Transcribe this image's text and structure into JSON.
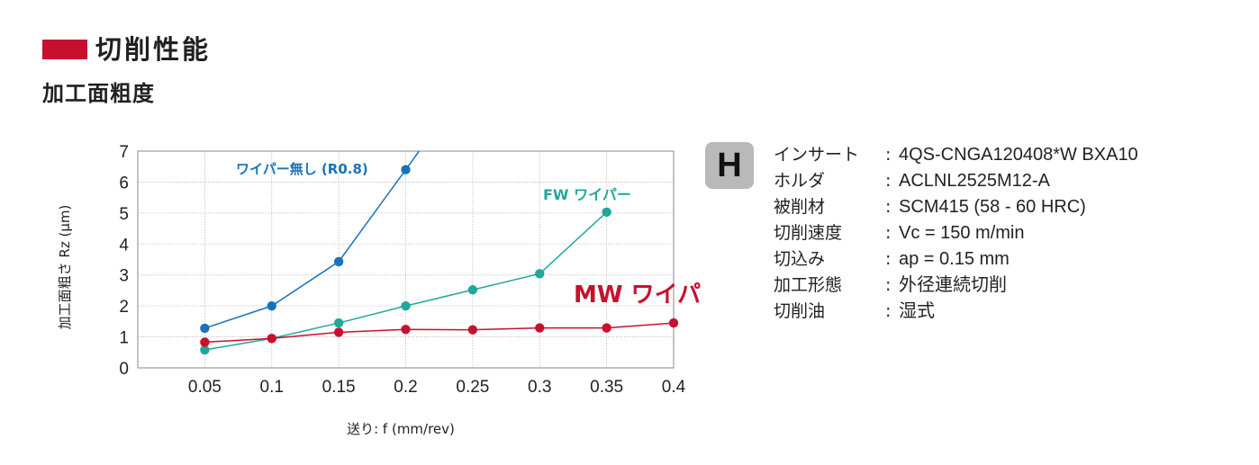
{
  "header": {
    "title": "切削性能",
    "subtitle": "加工面粗度",
    "accent_color": "#c8102e"
  },
  "chart_data": {
    "type": "line",
    "title": "",
    "xlabel": "送り: f (mm/rev)",
    "ylabel": "加工面粗さ Rz (μm)",
    "x_ticks": [
      "0.05",
      "0.1",
      "0.15",
      "0.2",
      "0.25",
      "0.3",
      "0.35",
      "0.4"
    ],
    "y_ticks": [
      "0",
      "1",
      "2",
      "3",
      "4",
      "5",
      "6",
      "7"
    ],
    "xlim": [
      0,
      0.4
    ],
    "ylim": [
      0,
      7
    ],
    "grid": true,
    "series": [
      {
        "name": "ワイパー無し (R0.8)",
        "color": "#1a73b8",
        "x": [
          0.05,
          0.1,
          0.15,
          0.2
        ],
        "y": [
          1.28,
          2.0,
          3.43,
          6.4
        ],
        "extends_to": {
          "x": 0.21,
          "y": 7.0
        }
      },
      {
        "name": "FW ワイパー",
        "color": "#1fa89a",
        "x": [
          0.05,
          0.1,
          0.15,
          0.2,
          0.25,
          0.3,
          0.35
        ],
        "y": [
          0.58,
          0.95,
          1.45,
          2.0,
          2.52,
          3.04,
          5.03
        ]
      },
      {
        "name": "MW ワイパー",
        "color": "#c8102e",
        "x": [
          0.05,
          0.1,
          0.15,
          0.2,
          0.25,
          0.3,
          0.35,
          0.4
        ],
        "y": [
          0.83,
          0.95,
          1.15,
          1.24,
          1.23,
          1.29,
          1.29,
          1.45
        ]
      }
    ]
  },
  "spec": {
    "badge": "H",
    "rows": [
      {
        "label": "インサート",
        "value": "4QS-CNGA120408*W BXA10"
      },
      {
        "label": "ホルダ",
        "value": "ACLNL2525M12-A"
      },
      {
        "label": "被削材",
        "value": "SCM415 (58 - 60 HRC)"
      },
      {
        "label": "切削速度",
        "value": "Vc = 150 m/min"
      },
      {
        "label": "切込み",
        "value": "ap = 0.15 mm"
      },
      {
        "label": "加工形態",
        "value": "外径連続切削"
      },
      {
        "label": "切削油",
        "value": "湿式"
      }
    ],
    "colon": ":"
  }
}
